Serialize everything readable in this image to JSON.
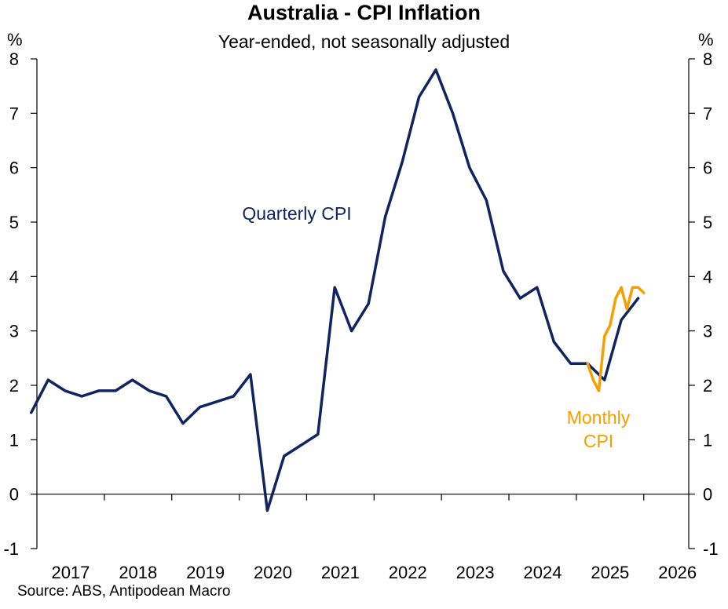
{
  "chart_data": {
    "type": "line",
    "title": "Australia - CPI Inflation",
    "subtitle": "Year-ended, not seasonally adjusted",
    "ylabel_left": "%",
    "ylabel_right": "%",
    "ylim": [
      -1,
      8
    ],
    "yticks": [
      "-1",
      "0",
      "1",
      "2",
      "3",
      "4",
      "5",
      "6",
      "7",
      "8"
    ],
    "xticks": [
      "2017",
      "2018",
      "2019",
      "2020",
      "2021",
      "2022",
      "2023",
      "2024",
      "2025",
      "2026"
    ],
    "xlim": [
      "2017-01",
      "2026-09"
    ],
    "grid": false,
    "legend": "none",
    "source": "Source: ABS, Antipodean Macro",
    "annotations": {
      "quarterly": "Quarterly CPI",
      "monthly_line1": "Monthly",
      "monthly_line2": "CPI"
    },
    "colors": {
      "quarterly": "#0f2461",
      "monthly": "#f5a000"
    },
    "series": [
      {
        "name": "Quarterly CPI",
        "points": [
          [
            "2016-12",
            1.5
          ],
          [
            "2017-03",
            2.1
          ],
          [
            "2017-06",
            1.9
          ],
          [
            "2017-09",
            1.8
          ],
          [
            "2017-12",
            1.9
          ],
          [
            "2018-03",
            1.9
          ],
          [
            "2018-06",
            2.1
          ],
          [
            "2018-09",
            1.9
          ],
          [
            "2018-12",
            1.8
          ],
          [
            "2019-03",
            1.3
          ],
          [
            "2019-06",
            1.6
          ],
          [
            "2019-09",
            1.7
          ],
          [
            "2019-12",
            1.8
          ],
          [
            "2020-03",
            2.2
          ],
          [
            "2020-06",
            -0.3
          ],
          [
            "2020-09",
            0.7
          ],
          [
            "2020-12",
            0.9
          ],
          [
            "2021-03",
            1.1
          ],
          [
            "2021-06",
            3.8
          ],
          [
            "2021-09",
            3.0
          ],
          [
            "2021-12",
            3.5
          ],
          [
            "2022-03",
            5.1
          ],
          [
            "2022-06",
            6.1
          ],
          [
            "2022-09",
            7.3
          ],
          [
            "2022-12",
            7.8
          ],
          [
            "2023-03",
            7.0
          ],
          [
            "2023-06",
            6.0
          ],
          [
            "2023-09",
            5.4
          ],
          [
            "2023-12",
            4.1
          ],
          [
            "2024-03",
            3.6
          ],
          [
            "2024-06",
            3.8
          ],
          [
            "2024-09",
            2.8
          ],
          [
            "2024-12",
            2.4
          ],
          [
            "2025-03",
            2.4
          ],
          [
            "2025-06",
            2.1
          ],
          [
            "2025-09",
            3.2
          ],
          [
            "2025-12",
            3.6
          ]
        ]
      },
      {
        "name": "Monthly CPI",
        "points": [
          [
            "2025-03",
            2.4
          ],
          [
            "2025-04",
            2.1
          ],
          [
            "2025-05",
            1.9
          ],
          [
            "2025-06",
            2.9
          ],
          [
            "2025-07",
            3.1
          ],
          [
            "2025-08",
            3.6
          ],
          [
            "2025-09",
            3.8
          ],
          [
            "2025-10",
            3.4
          ],
          [
            "2025-11",
            3.8
          ],
          [
            "2025-12",
            3.8
          ],
          [
            "2026-01",
            3.7
          ]
        ]
      }
    ]
  }
}
